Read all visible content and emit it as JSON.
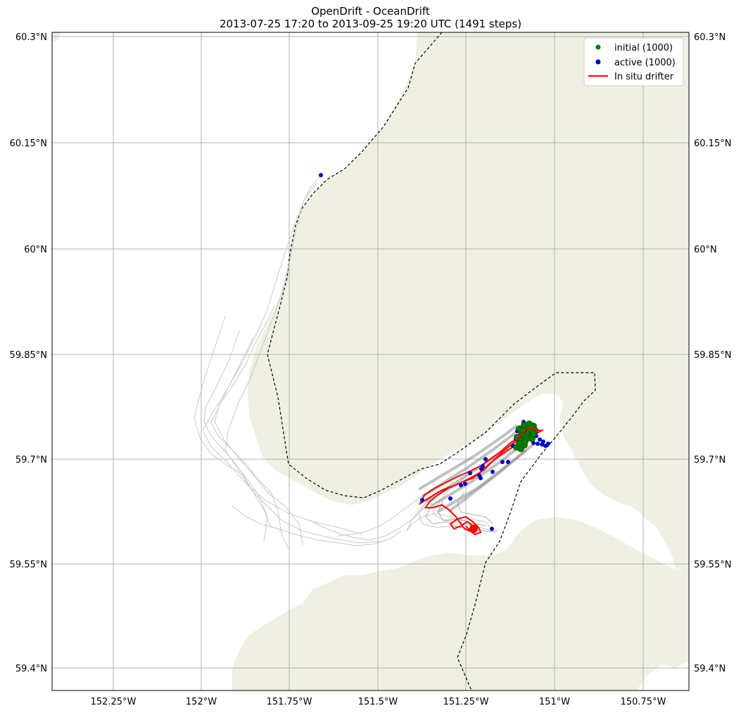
{
  "title": {
    "line1": "OpenDrift - OceanDrift",
    "line2": "2013-07-25 17:20 to 2013-09-25 19:20 UTC (1491 steps)"
  },
  "map": {
    "lon_ticks": [
      "152.25°W",
      "152°W",
      "151.75°W",
      "151.5°W",
      "151.25°W",
      "151°W",
      "150.75°W"
    ],
    "lat_ticks": [
      "60.3°N",
      "60.15°N",
      "60°N",
      "59.85°N",
      "59.7°N",
      "59.55°N",
      "59.4°N"
    ],
    "land_color": "#efefe3",
    "grid_color": "#b0b0b0",
    "boundary_style": "black dashed"
  },
  "legend": {
    "items": [
      {
        "label": "initial (1000)",
        "color": "#008000",
        "marker": "dot"
      },
      {
        "label": "active (1000)",
        "color": "#0000cc",
        "marker": "dot"
      },
      {
        "label": "In situ drifter",
        "color": "#ff0000",
        "marker": "line"
      }
    ]
  },
  "colors": {
    "trajectory_light": "#c8c8c8",
    "trajectory_dark": "#888888",
    "initial": "#008000",
    "active": "#0000cc",
    "drifter": "#ff0000"
  }
}
